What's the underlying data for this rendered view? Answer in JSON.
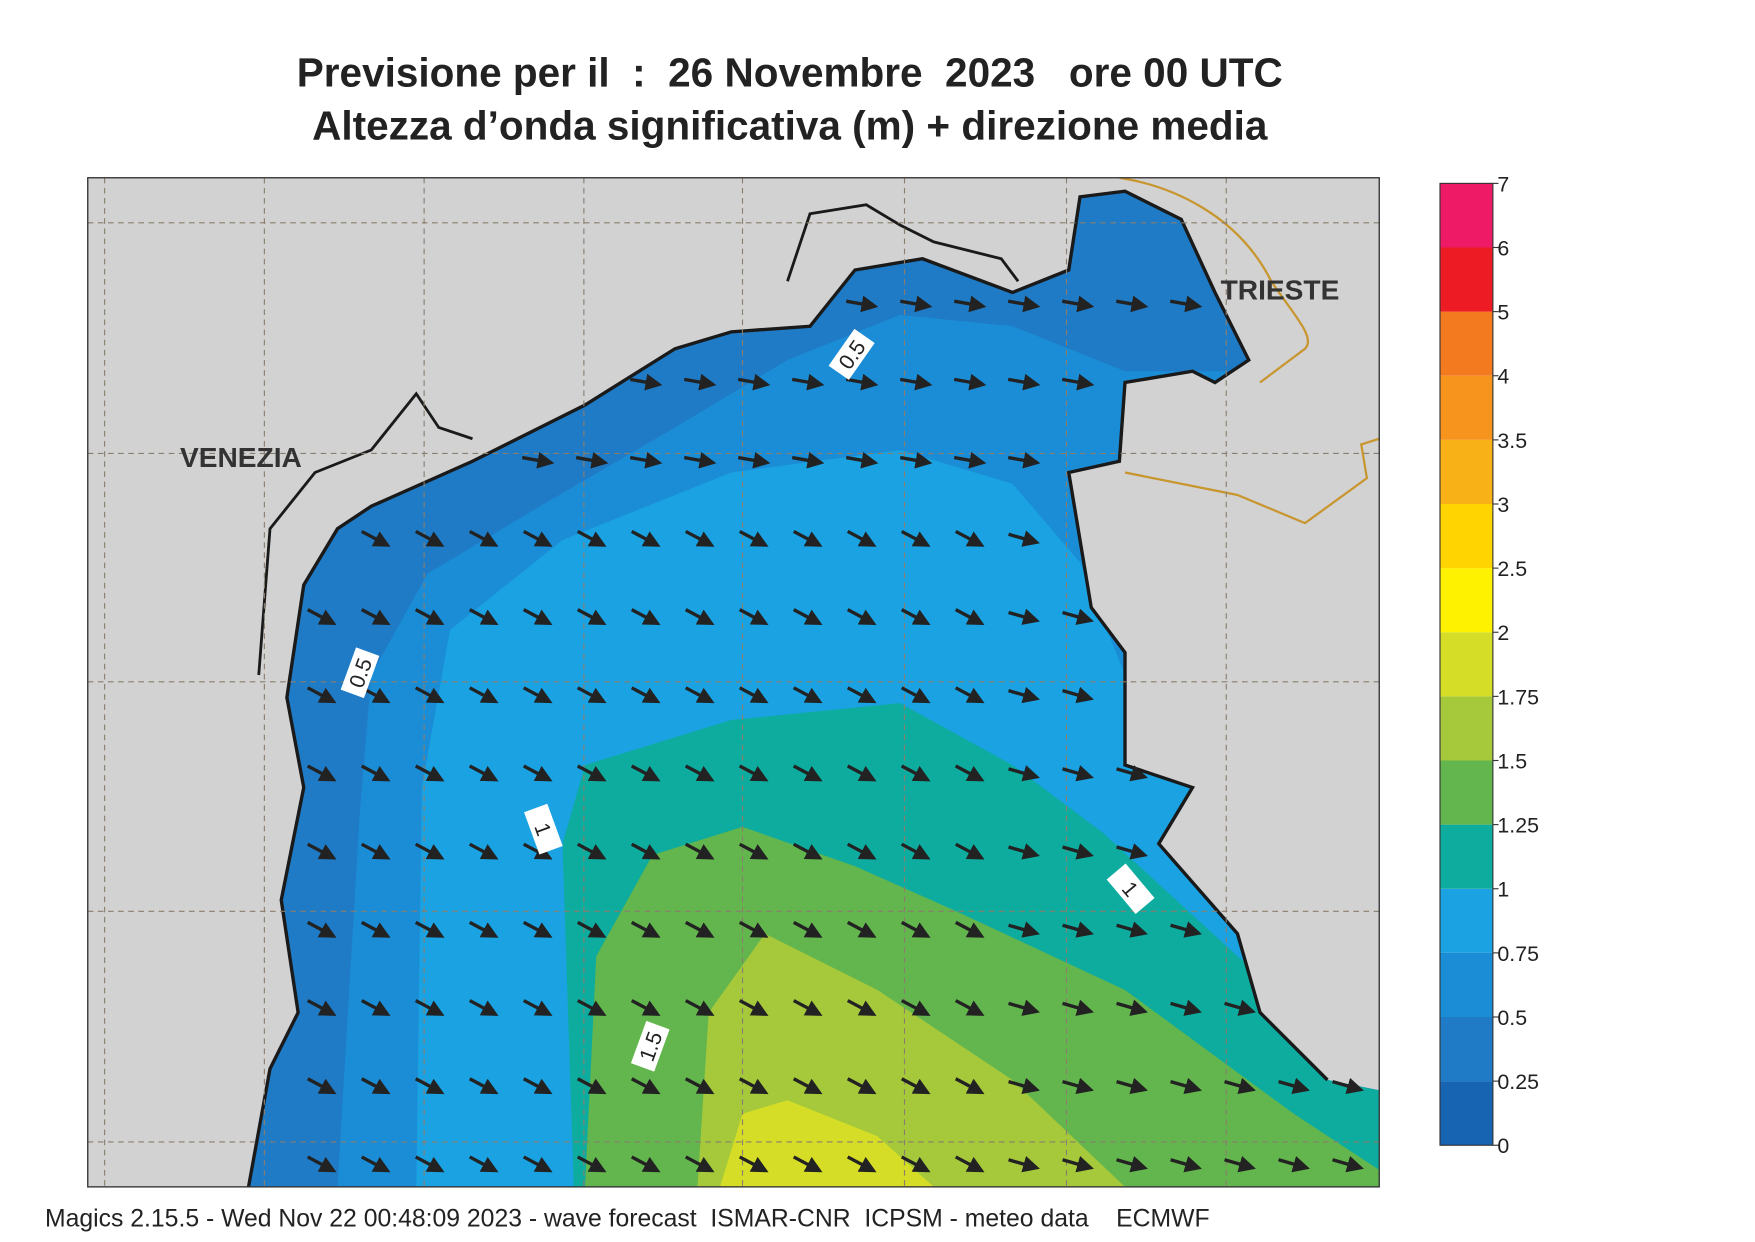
{
  "title": [
    "Previsione per il  :  26 Novembre  2023   ore 00 UTC",
    "Altezza d’onda significativa (m) + direzione media"
  ],
  "footer": "Magics 2.15.5 - Wed Nov 22 00:48:09 2023 - wave forecast  ISMAR-CNR  ICPSM - meteo data    ECMWF",
  "cities": [
    "VENEZIA",
    "TRIESTE"
  ],
  "contour_labels": [
    0.5,
    0.5,
    1,
    1,
    1.5
  ],
  "colorbar": {
    "levels": [
      0,
      0.25,
      0.5,
      0.75,
      1,
      1.25,
      1.5,
      1.75,
      2,
      2.5,
      3,
      3.5,
      4,
      5,
      6,
      7
    ],
    "colors": [
      "#1764b3",
      "#1f7bc6",
      "#1b8dd7",
      "#1aa2e2",
      "#0eac9f",
      "#63b54d",
      "#a6c93b",
      "#d5dd26",
      "#fff200",
      "#ffd400",
      "#f8b117",
      "#f7941d",
      "#f47a20",
      "#ed1c24",
      "#ee1a66"
    ]
  }
}
